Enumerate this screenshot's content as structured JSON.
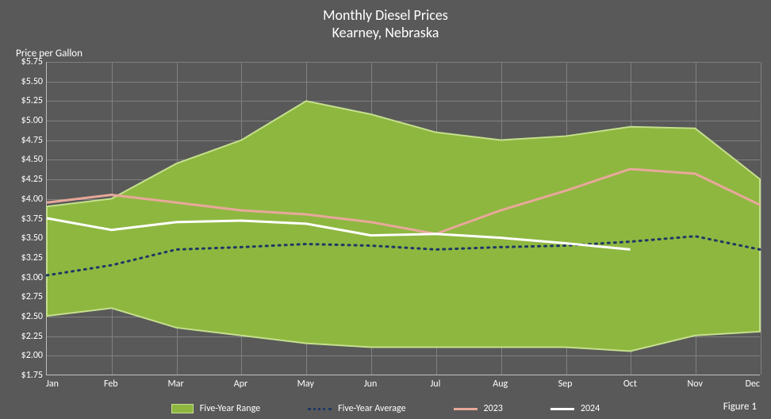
{
  "chart": {
    "type": "area-line-combo",
    "title": "Monthly Diesel Prices",
    "subtitle": "Kearney, Nebraska",
    "y_axis_title": "Price per Gallon",
    "figure_label": "Figure 1",
    "background_color": "#595959",
    "grid_color": "#808080",
    "axis_color": "#bfbfbf",
    "text_color": "#ffffff",
    "title_fontsize": 18,
    "label_fontsize": 12,
    "y_axis": {
      "min": 1.75,
      "max": 5.75,
      "tick_step": 0.25,
      "tick_labels": [
        "$1.75",
        "$2.00",
        "$2.25",
        "$2.50",
        "$2.75",
        "$3.00",
        "$3.25",
        "$3.50",
        "$3.75",
        "$4.00",
        "$4.25",
        "$4.50",
        "$4.75",
        "$5.00",
        "$5.25",
        "$5.50",
        "$5.75"
      ],
      "tick_values": [
        1.75,
        2.0,
        2.25,
        2.5,
        2.75,
        3.0,
        3.25,
        3.5,
        3.75,
        4.0,
        4.25,
        4.5,
        4.75,
        5.0,
        5.25,
        5.5,
        5.75
      ]
    },
    "x_axis": {
      "categories": [
        "Jan",
        "Feb",
        "Mar",
        "Apr",
        "May",
        "Jun",
        "Jul",
        "Aug",
        "Sep",
        "Oct",
        "Nov",
        "Dec"
      ]
    },
    "series": {
      "five_year_range": {
        "label": "Five-Year Range",
        "fill_color": "#8eb740",
        "border_color": "#c5e08c",
        "border_width": 2,
        "upper": [
          3.9,
          4.0,
          4.45,
          4.75,
          5.25,
          5.08,
          4.85,
          4.75,
          4.8,
          4.92,
          4.9,
          4.25
        ],
        "lower": [
          2.5,
          2.6,
          2.35,
          2.25,
          2.15,
          2.1,
          2.1,
          2.1,
          2.1,
          2.05,
          2.25,
          2.3
        ]
      },
      "five_year_average": {
        "label": "Five-Year Average",
        "color": "#1f3864",
        "style": "dotted",
        "line_width": 3,
        "values": [
          3.02,
          3.15,
          3.35,
          3.38,
          3.42,
          3.4,
          3.35,
          3.38,
          3.4,
          3.45,
          3.52,
          3.35
        ]
      },
      "series_2023": {
        "label": "2023",
        "color": "#e8a89a",
        "line_width": 3,
        "values": [
          3.95,
          4.05,
          3.95,
          3.85,
          3.8,
          3.7,
          3.55,
          3.85,
          4.1,
          4.38,
          4.32,
          3.92
        ]
      },
      "series_2024": {
        "label": "2024",
        "color": "#ffffff",
        "line_width": 3,
        "values": [
          3.75,
          3.6,
          3.7,
          3.72,
          3.68,
          3.53,
          3.55,
          3.5,
          3.43,
          3.35
        ]
      }
    },
    "legend": {
      "items": [
        "Five-Year Range",
        "Five-Year Average",
        "2023",
        "2024"
      ]
    }
  }
}
